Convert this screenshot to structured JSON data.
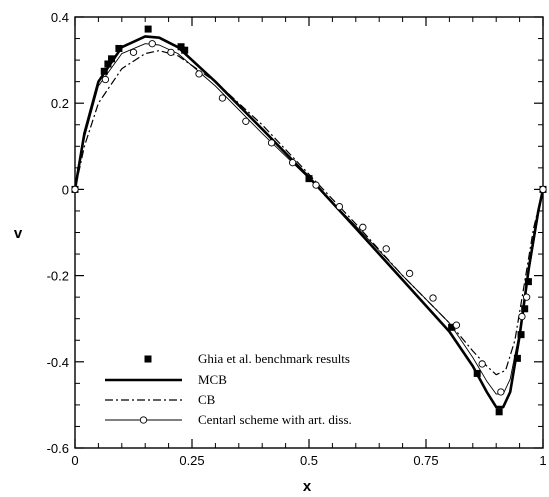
{
  "chart_data": {
    "type": "line",
    "xlabel": "x",
    "ylabel": "v",
    "xlim": [
      0,
      1
    ],
    "ylim": [
      -0.6,
      0.4
    ],
    "xticks": [
      "0",
      "0.25",
      "0.5",
      "0.75",
      "1"
    ],
    "yticks": [
      "0.4",
      "0.2",
      "0",
      "-0.2",
      "-0.4",
      "-0.6"
    ],
    "grid": false,
    "legend_position": "bottom-left",
    "series": [
      {
        "name": "Ghia et al. benchmark results",
        "style": "markers",
        "marker": "filled-square",
        "points": [
          [
            0.0,
            0.0
          ],
          [
            0.0625,
            0.274
          ],
          [
            0.0703,
            0.291
          ],
          [
            0.0781,
            0.303
          ],
          [
            0.0938,
            0.327
          ],
          [
            0.1563,
            0.372
          ],
          [
            0.2266,
            0.331
          ],
          [
            0.2344,
            0.323
          ],
          [
            0.5,
            0.025
          ],
          [
            0.8047,
            -0.32
          ],
          [
            0.8594,
            -0.427
          ],
          [
            0.9063,
            -0.516
          ],
          [
            0.9453,
            -0.392
          ],
          [
            0.9531,
            -0.337
          ],
          [
            0.9609,
            -0.277
          ],
          [
            0.9688,
            -0.214
          ],
          [
            1.0,
            0.0
          ]
        ]
      },
      {
        "name": "MCB",
        "style": "thick-solid",
        "points": [
          [
            0.0,
            0.0
          ],
          [
            0.02,
            0.13
          ],
          [
            0.05,
            0.25
          ],
          [
            0.1,
            0.33
          ],
          [
            0.15,
            0.355
          ],
          [
            0.18,
            0.352
          ],
          [
            0.22,
            0.33
          ],
          [
            0.3,
            0.25
          ],
          [
            0.4,
            0.14
          ],
          [
            0.5,
            0.028
          ],
          [
            0.6,
            -0.09
          ],
          [
            0.7,
            -0.21
          ],
          [
            0.8,
            -0.33
          ],
          [
            0.85,
            -0.41
          ],
          [
            0.88,
            -0.47
          ],
          [
            0.9,
            -0.505
          ],
          [
            0.915,
            -0.505
          ],
          [
            0.93,
            -0.47
          ],
          [
            0.95,
            -0.34
          ],
          [
            0.97,
            -0.18
          ],
          [
            0.99,
            -0.05
          ],
          [
            1.0,
            0.0
          ]
        ]
      },
      {
        "name": "CB",
        "style": "dash-dot",
        "points": [
          [
            0.0,
            0.0
          ],
          [
            0.02,
            0.1
          ],
          [
            0.05,
            0.2
          ],
          [
            0.1,
            0.28
          ],
          [
            0.15,
            0.315
          ],
          [
            0.18,
            0.322
          ],
          [
            0.22,
            0.31
          ],
          [
            0.3,
            0.25
          ],
          [
            0.4,
            0.15
          ],
          [
            0.5,
            0.035
          ],
          [
            0.6,
            -0.08
          ],
          [
            0.7,
            -0.2
          ],
          [
            0.8,
            -0.31
          ],
          [
            0.85,
            -0.375
          ],
          [
            0.88,
            -0.41
          ],
          [
            0.9,
            -0.43
          ],
          [
            0.92,
            -0.42
          ],
          [
            0.94,
            -0.35
          ],
          [
            0.96,
            -0.22
          ],
          [
            0.98,
            -0.09
          ],
          [
            1.0,
            0.0
          ]
        ]
      },
      {
        "name": "Centarl scheme with art. diss.",
        "style": "thin-solid-open-circles",
        "points": [
          [
            0.0,
            0.0
          ],
          [
            0.02,
            0.12
          ],
          [
            0.05,
            0.24
          ],
          [
            0.1,
            0.315
          ],
          [
            0.15,
            0.338
          ],
          [
            0.18,
            0.335
          ],
          [
            0.22,
            0.315
          ],
          [
            0.3,
            0.24
          ],
          [
            0.4,
            0.13
          ],
          [
            0.5,
            0.025
          ],
          [
            0.6,
            -0.085
          ],
          [
            0.7,
            -0.2
          ],
          [
            0.8,
            -0.31
          ],
          [
            0.85,
            -0.39
          ],
          [
            0.88,
            -0.445
          ],
          [
            0.9,
            -0.475
          ],
          [
            0.915,
            -0.475
          ],
          [
            0.93,
            -0.44
          ],
          [
            0.95,
            -0.33
          ],
          [
            0.97,
            -0.19
          ],
          [
            0.99,
            -0.06
          ],
          [
            1.0,
            0.0
          ]
        ],
        "marker_points": [
          [
            0.0,
            0.0
          ],
          [
            0.065,
            0.255
          ],
          [
            0.125,
            0.318
          ],
          [
            0.165,
            0.338
          ],
          [
            0.205,
            0.318
          ],
          [
            0.265,
            0.268
          ],
          [
            0.315,
            0.212
          ],
          [
            0.365,
            0.158
          ],
          [
            0.42,
            0.108
          ],
          [
            0.465,
            0.062
          ],
          [
            0.515,
            0.01
          ],
          [
            0.565,
            -0.04
          ],
          [
            0.615,
            -0.088
          ],
          [
            0.665,
            -0.138
          ],
          [
            0.715,
            -0.195
          ],
          [
            0.765,
            -0.252
          ],
          [
            0.815,
            -0.315
          ],
          [
            0.87,
            -0.405
          ],
          [
            0.91,
            -0.47
          ],
          [
            0.955,
            -0.295
          ],
          [
            0.965,
            -0.25
          ],
          [
            1.0,
            0.0
          ]
        ]
      }
    ]
  }
}
